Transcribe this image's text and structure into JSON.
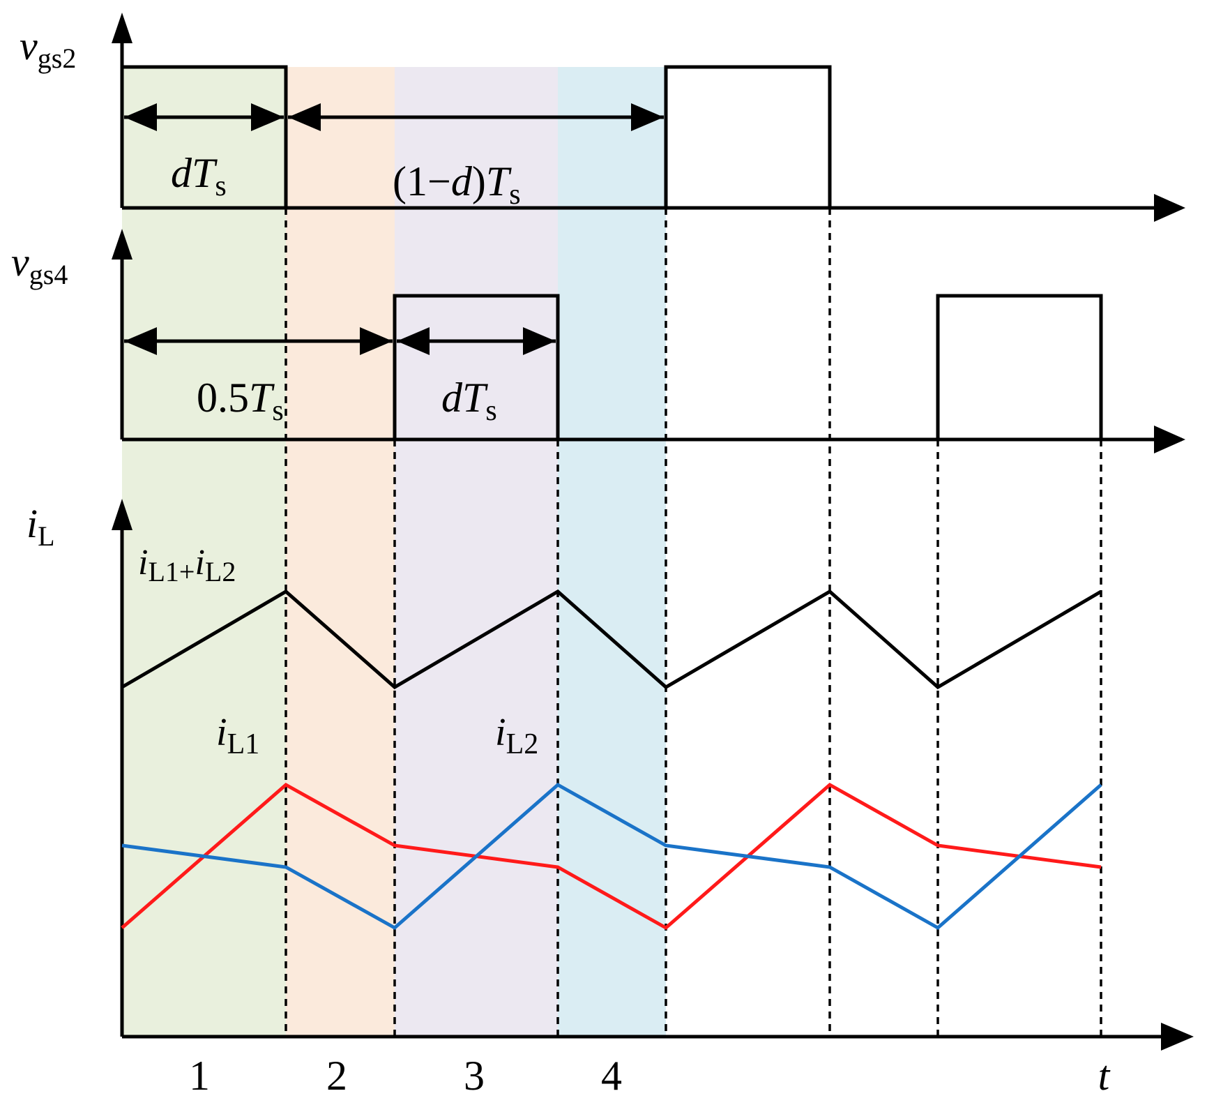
{
  "labels": {
    "vgs2_main": "v",
    "vgs2_sub": "gs2",
    "vgs4_main": "v",
    "vgs4_sub": "gs4",
    "iL_main": "i",
    "iL_sub": "L",
    "dTs1_d": "d",
    "dTs1_T": "T",
    "dTs1_s": "s",
    "oneMinusD_open": "(1−",
    "oneMinusD_d": "d",
    "oneMinusD_close": ")",
    "oneMinusD_T": "T",
    "oneMinusD_s": "s",
    "halfTs_num": "0.5",
    "halfTs_T": "T",
    "halfTs_s": "s",
    "dTs2_d": "d",
    "dTs2_T": "T",
    "dTs2_s": "s",
    "sum_i1": "i",
    "sum_sub1": "L1+",
    "sum_i2": "i",
    "sum_sub2": "L2",
    "iL1_main": "i",
    "iL1_sub": "L1",
    "iL2_main": "i",
    "iL2_sub": "L2",
    "interval_1": "1",
    "interval_2": "2",
    "interval_3": "3",
    "interval_4": "4",
    "t_axis": "t"
  },
  "colors": {
    "interval_1": "#e9f0dd",
    "interval_2": "#fbeadc",
    "interval_3": "#ece8f1",
    "interval_4": "#daedf3",
    "waveform": "#000000",
    "iL1": "#ff1a1a",
    "iL2": "#1a73c8"
  }
}
